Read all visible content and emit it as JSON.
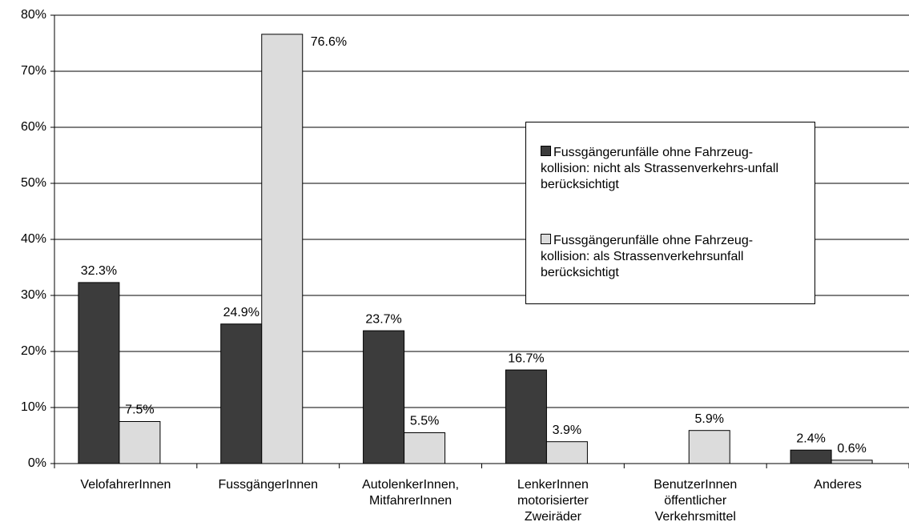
{
  "chart_data": {
    "type": "bar",
    "categories": [
      "VelofahrerInnen",
      "FussgängerInnen",
      "AutolenkerInnen, MitfahrerInnen",
      "LenkerInnen motorisierter Zweiräder",
      "BenutzerInnen öffentlicher Verkehrsmittel",
      "Anderes"
    ],
    "series": [
      {
        "name": "Fussgängerunfälle ohne Fahrzeug-kollision: nicht als Strassenverkehrs-unfall berücksichtigt",
        "color": "#3c3c3c",
        "values": [
          32.3,
          24.9,
          23.7,
          16.7,
          null,
          2.4
        ],
        "value_labels": [
          "32.3%",
          "24.9%",
          "23.7%",
          "16.7%",
          null,
          "2.4%"
        ]
      },
      {
        "name": "Fussgängerunfälle ohne Fahrzeug-kollision: als Strassenverkehrsunfall berücksichtigt",
        "color": "#dcdcdc",
        "values": [
          7.5,
          76.6,
          5.5,
          3.9,
          5.9,
          0.6
        ],
        "value_labels": [
          "7.5%",
          "76.6%",
          "5.5%",
          "3.9%",
          "5.9%",
          "0.6%"
        ]
      }
    ],
    "ylim": [
      0,
      80
    ],
    "yticks": [
      {
        "value": 0,
        "label": "0%"
      },
      {
        "value": 10,
        "label": "10%"
      },
      {
        "value": 20,
        "label": "20%"
      },
      {
        "value": 30,
        "label": "30%"
      },
      {
        "value": 40,
        "label": "40%"
      },
      {
        "value": 50,
        "label": "50%"
      },
      {
        "value": 60,
        "label": "60%"
      },
      {
        "value": 70,
        "label": "70%"
      },
      {
        "value": 80,
        "label": "80%"
      }
    ],
    "grid": true
  }
}
